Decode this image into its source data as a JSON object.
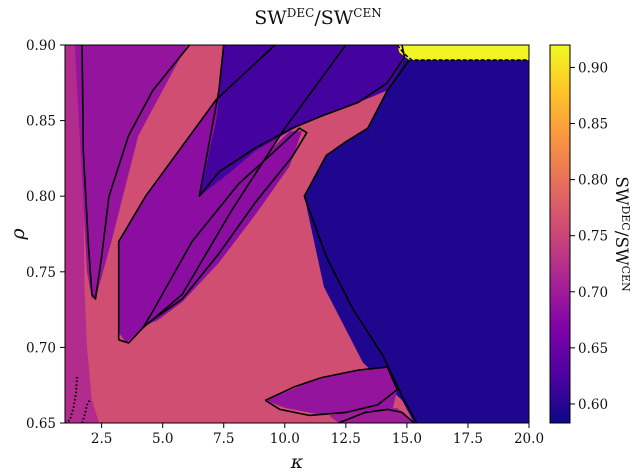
{
  "chart_data": {
    "type": "heatmap",
    "title": {
      "prefix": "SW",
      "sup1": "DEC",
      "mid": "/SW",
      "sup2": "CEN"
    },
    "xlabel": "κ",
    "ylabel": "ρ",
    "xlim": [
      1.0,
      20.0
    ],
    "ylim": [
      0.65,
      0.9
    ],
    "xticks": [
      2.5,
      5.0,
      7.5,
      10.0,
      12.5,
      15.0,
      17.5,
      20.0
    ],
    "xtick_labels": [
      "2.5",
      "5.0",
      "7.5",
      "10.0",
      "12.5",
      "15.0",
      "17.5",
      "20.0"
    ],
    "yticks": [
      0.65,
      0.7,
      0.75,
      0.8,
      0.85,
      0.9
    ],
    "ytick_labels": [
      "0.65",
      "0.70",
      "0.75",
      "0.80",
      "0.85",
      "0.90"
    ],
    "colorbar": {
      "label": {
        "prefix": "SW",
        "sup1": "DEC",
        "mid": "/SW",
        "sup2": "CEN"
      },
      "range": [
        0.583,
        0.92
      ],
      "ticks": [
        0.6,
        0.65,
        0.7,
        0.75,
        0.8,
        0.85,
        0.9
      ],
      "tick_labels": [
        "0.60",
        "0.65",
        "0.70",
        "0.75",
        "0.80",
        "0.85",
        "0.90"
      ],
      "colormap": "plasma"
    },
    "regions": [
      {
        "name": "background",
        "value": 0.76,
        "polygon": [
          [
            1.0,
            0.65
          ],
          [
            20.0,
            0.65
          ],
          [
            20.0,
            0.9
          ],
          [
            1.0,
            0.9
          ]
        ]
      },
      {
        "name": "band-left",
        "value": 0.72,
        "polygon": [
          [
            1.0,
            0.9
          ],
          [
            1.7,
            0.9
          ],
          [
            1.8,
            0.74
          ],
          [
            1.9,
            0.7
          ],
          [
            2.1,
            0.665
          ],
          [
            2.4,
            0.65
          ],
          [
            1.0,
            0.65
          ]
        ]
      },
      {
        "name": "tongue-left",
        "value": 0.69,
        "polygon": [
          [
            1.4,
            0.9
          ],
          [
            6.0,
            0.9
          ],
          [
            4.0,
            0.84
          ],
          [
            2.9,
            0.77
          ],
          [
            2.3,
            0.735
          ],
          [
            2.1,
            0.732
          ],
          [
            1.9,
            0.75
          ],
          [
            1.7,
            0.81
          ],
          [
            1.5,
            0.87
          ]
        ]
      },
      {
        "name": "wedge-mid",
        "value": 0.68,
        "polygon": [
          [
            3.2,
            0.77
          ],
          [
            4.3,
            0.8
          ],
          [
            7.2,
            0.864
          ],
          [
            9.6,
            0.9
          ],
          [
            12.5,
            0.9
          ],
          [
            10.0,
            0.845
          ],
          [
            7.8,
            0.79
          ],
          [
            5.8,
            0.735
          ],
          [
            4.2,
            0.713
          ],
          [
            3.5,
            0.703
          ],
          [
            3.2,
            0.71
          ]
        ]
      },
      {
        "name": "wedge-small",
        "value": 0.68,
        "polygon": [
          [
            4.2,
            0.714
          ],
          [
            4.3,
            0.752
          ],
          [
            6.2,
            0.777
          ],
          [
            8.5,
            0.816
          ],
          [
            10.2,
            0.843
          ],
          [
            10.7,
            0.843
          ],
          [
            10.2,
            0.82
          ],
          [
            8.9,
            0.79
          ],
          [
            7.3,
            0.756
          ],
          [
            5.8,
            0.73
          ],
          [
            4.8,
            0.718
          ]
        ]
      },
      {
        "name": "blue-top",
        "value": 0.62,
        "polygon": [
          [
            7.5,
            0.9
          ],
          [
            14.8,
            0.9
          ],
          [
            15.0,
            0.893
          ],
          [
            14.2,
            0.87
          ],
          [
            13.0,
            0.862
          ],
          [
            11.5,
            0.853
          ],
          [
            10.4,
            0.845
          ],
          [
            8.8,
            0.83
          ],
          [
            7.7,
            0.815
          ],
          [
            6.5,
            0.8
          ],
          [
            7.2,
            0.85
          ]
        ]
      },
      {
        "name": "blue-right",
        "value": 0.595,
        "polygon": [
          [
            15.0,
            0.893
          ],
          [
            20.0,
            0.89
          ],
          [
            20.0,
            0.65
          ],
          [
            15.3,
            0.65
          ],
          [
            14.8,
            0.665
          ],
          [
            13.2,
            0.69
          ],
          [
            11.6,
            0.74
          ],
          [
            10.8,
            0.8
          ],
          [
            11.7,
            0.827
          ],
          [
            12.5,
            0.836
          ],
          [
            13.4,
            0.845
          ],
          [
            14.2,
            0.87
          ]
        ]
      },
      {
        "name": "blob-lower",
        "value": 0.69,
        "polygon": [
          [
            9.2,
            0.665
          ],
          [
            11.0,
            0.677
          ],
          [
            12.5,
            0.684
          ],
          [
            14.2,
            0.687
          ],
          [
            14.6,
            0.672
          ],
          [
            14.4,
            0.658
          ],
          [
            13.0,
            0.655
          ],
          [
            11.3,
            0.656
          ],
          [
            10.0,
            0.66
          ]
        ]
      },
      {
        "name": "blob-corner",
        "value": 0.7,
        "polygon": [
          [
            11.8,
            0.655
          ],
          [
            13.3,
            0.658
          ],
          [
            14.6,
            0.66
          ],
          [
            15.3,
            0.65
          ],
          [
            12.2,
            0.65
          ]
        ]
      },
      {
        "name": "yellow-corner",
        "value": 0.915,
        "polygon": [
          [
            14.6,
            0.9
          ],
          [
            20.0,
            0.9
          ],
          [
            20.0,
            0.89
          ],
          [
            15.1,
            0.89
          ],
          [
            14.7,
            0.895
          ]
        ]
      }
    ],
    "contours": [
      {
        "name": "contour-tongue",
        "style": "solid",
        "points": [
          [
            1.7,
            0.9
          ],
          [
            1.75,
            0.83
          ],
          [
            1.95,
            0.77
          ],
          [
            2.1,
            0.735
          ],
          [
            2.25,
            0.732
          ],
          [
            2.5,
            0.76
          ],
          [
            2.8,
            0.8
          ],
          [
            3.6,
            0.84
          ],
          [
            4.6,
            0.87
          ],
          [
            6.1,
            0.9
          ]
        ]
      },
      {
        "name": "contour-wedge",
        "style": "solid",
        "points": [
          [
            3.2,
            0.705
          ],
          [
            3.2,
            0.77
          ],
          [
            4.3,
            0.8
          ],
          [
            7.2,
            0.864
          ],
          [
            9.6,
            0.9
          ]
        ]
      },
      {
        "name": "contour-wedge-lower",
        "style": "solid",
        "points": [
          [
            3.2,
            0.705
          ],
          [
            3.6,
            0.703
          ],
          [
            4.2,
            0.713
          ],
          [
            5.8,
            0.735
          ],
          [
            7.8,
            0.79
          ],
          [
            10.0,
            0.845
          ],
          [
            12.5,
            0.9
          ]
        ]
      },
      {
        "name": "contour-small-wedge",
        "style": "solid",
        "points": [
          [
            4.2,
            0.713
          ],
          [
            4.6,
            0.724
          ],
          [
            6.2,
            0.77
          ],
          [
            8.1,
            0.808
          ],
          [
            9.6,
            0.83
          ],
          [
            10.6,
            0.845
          ],
          [
            10.9,
            0.842
          ],
          [
            10.3,
            0.826
          ],
          [
            8.8,
            0.796
          ],
          [
            7.3,
            0.762
          ],
          [
            5.8,
            0.732
          ],
          [
            4.4,
            0.716
          ]
        ]
      },
      {
        "name": "contour-blue-top",
        "style": "solid",
        "points": [
          [
            7.5,
            0.9
          ],
          [
            7.3,
            0.87
          ],
          [
            6.5,
            0.8
          ],
          [
            7.3,
            0.816
          ],
          [
            8.8,
            0.832
          ],
          [
            10.3,
            0.845
          ],
          [
            11.5,
            0.853
          ],
          [
            13.0,
            0.862
          ],
          [
            14.2,
            0.875
          ],
          [
            14.9,
            0.892
          ],
          [
            14.8,
            0.9
          ]
        ]
      },
      {
        "name": "contour-blue-right",
        "style": "solid",
        "points": [
          [
            15.1,
            0.89
          ],
          [
            14.2,
            0.87
          ],
          [
            13.4,
            0.845
          ],
          [
            12.5,
            0.836
          ],
          [
            11.7,
            0.827
          ],
          [
            10.8,
            0.8
          ],
          [
            11.7,
            0.76
          ],
          [
            12.8,
            0.725
          ],
          [
            14.0,
            0.695
          ],
          [
            14.8,
            0.668
          ],
          [
            15.4,
            0.65
          ]
        ]
      },
      {
        "name": "contour-blob-lower",
        "style": "solid",
        "points": [
          [
            9.2,
            0.665
          ],
          [
            10.4,
            0.674
          ],
          [
            11.5,
            0.68
          ],
          [
            13.0,
            0.685
          ],
          [
            14.2,
            0.687
          ],
          [
            14.6,
            0.672
          ],
          [
            13.8,
            0.662
          ],
          [
            12.5,
            0.657
          ],
          [
            11.0,
            0.655
          ],
          [
            9.8,
            0.659
          ],
          [
            9.2,
            0.665
          ]
        ]
      },
      {
        "name": "contour-blob-corner",
        "style": "solid",
        "points": [
          [
            12.2,
            0.65
          ],
          [
            13.3,
            0.657
          ],
          [
            14.2,
            0.659
          ],
          [
            14.8,
            0.657
          ],
          [
            15.3,
            0.65
          ]
        ]
      },
      {
        "name": "contour-yellow",
        "style": "dashed",
        "points": [
          [
            14.6,
            0.9
          ],
          [
            14.9,
            0.894
          ],
          [
            15.2,
            0.89
          ],
          [
            20.0,
            0.89
          ]
        ]
      },
      {
        "name": "contour-dotted-left",
        "style": "dotted",
        "points": [
          [
            1.0,
            0.65
          ],
          [
            1.2,
            0.652
          ],
          [
            1.35,
            0.66
          ],
          [
            1.45,
            0.67
          ],
          [
            1.5,
            0.682
          ]
        ]
      },
      {
        "name": "contour-dotted-mid",
        "style": "dotted",
        "points": [
          [
            1.7,
            0.65
          ],
          [
            1.8,
            0.655
          ],
          [
            1.9,
            0.662
          ],
          [
            2.05,
            0.666
          ]
        ]
      }
    ]
  }
}
